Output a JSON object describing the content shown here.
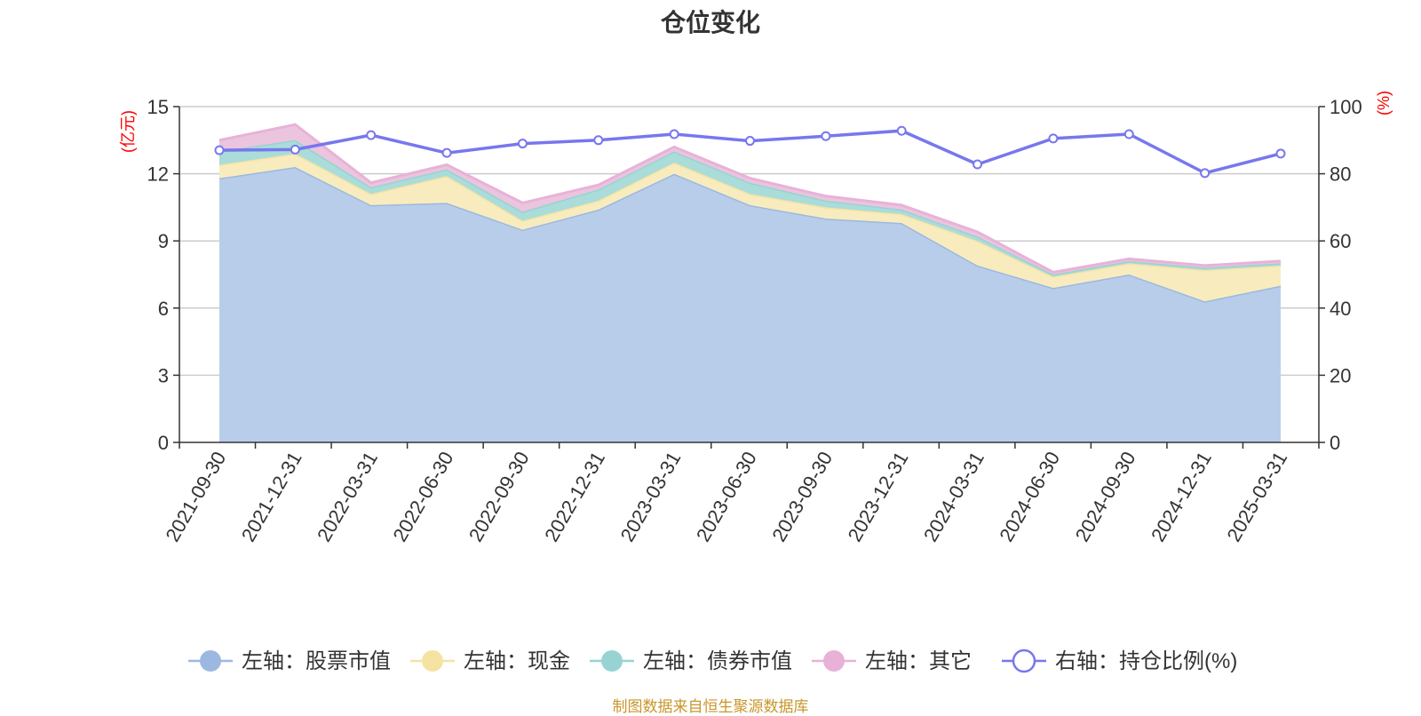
{
  "title": "仓位变化",
  "footer": "制图数据来自恒生聚源数据库",
  "chart_data": {
    "type": "area",
    "categories": [
      "2021-09-30",
      "2021-12-31",
      "2022-03-31",
      "2022-06-30",
      "2022-09-30",
      "2022-12-31",
      "2023-03-31",
      "2023-06-30",
      "2023-09-30",
      "2023-12-31",
      "2024-03-31",
      "2024-06-30",
      "2024-09-30",
      "2024-12-31",
      "2025-03-31"
    ],
    "left_axis": {
      "unit": "(亿元)",
      "ylim": [
        0,
        15
      ],
      "ticks": [
        0,
        3,
        6,
        9,
        12,
        15
      ]
    },
    "right_axis": {
      "unit": "(%)",
      "ylim": [
        0,
        100
      ],
      "ticks": [
        0,
        20,
        40,
        60,
        80,
        100
      ]
    },
    "stacked": true,
    "grid": true,
    "legend_position": "bottom",
    "series": [
      {
        "name": "左轴：股票市值",
        "axis": "left",
        "kind": "area",
        "color": "#9db8e0",
        "fill": "#b8cdea",
        "values": [
          11.8,
          12.3,
          10.6,
          10.7,
          9.5,
          10.4,
          12.0,
          10.6,
          10.0,
          9.8,
          7.9,
          6.9,
          7.5,
          6.3,
          7.0
        ]
      },
      {
        "name": "左轴：现金",
        "axis": "left",
        "kind": "area",
        "color": "#f5e3a3",
        "fill": "#f8ecbe",
        "values": [
          0.6,
          0.6,
          0.5,
          1.2,
          0.4,
          0.4,
          0.5,
          0.5,
          0.5,
          0.4,
          1.1,
          0.5,
          0.5,
          1.4,
          0.9
        ]
      },
      {
        "name": "左轴：债券市值",
        "axis": "left",
        "kind": "area",
        "color": "#97d3d3",
        "fill": "#aadcda",
        "values": [
          0.6,
          0.6,
          0.3,
          0.3,
          0.4,
          0.5,
          0.5,
          0.5,
          0.3,
          0.2,
          0.2,
          0.1,
          0.1,
          0.1,
          0.1
        ]
      },
      {
        "name": "左轴：其它",
        "axis": "left",
        "kind": "area",
        "color": "#e8b2d8",
        "fill": "#ebc4dd",
        "values": [
          0.5,
          0.7,
          0.2,
          0.2,
          0.4,
          0.2,
          0.2,
          0.2,
          0.2,
          0.2,
          0.2,
          0.1,
          0.1,
          0.1,
          0.1
        ]
      },
      {
        "name": "右轴：持仓比例(%)",
        "axis": "right",
        "kind": "line",
        "color": "#7777ee",
        "values": [
          87.0,
          87.2,
          91.5,
          86.2,
          89.0,
          90.0,
          91.8,
          89.8,
          91.2,
          92.8,
          82.8,
          90.5,
          91.8,
          80.2,
          86.0
        ]
      }
    ]
  }
}
